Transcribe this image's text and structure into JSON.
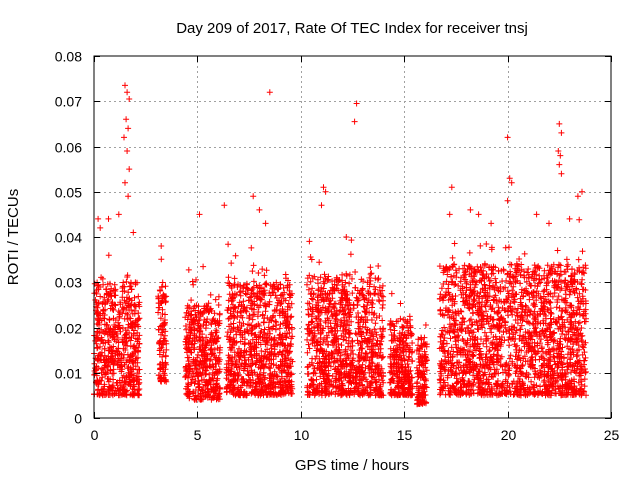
{
  "chart_data": {
    "type": "scatter",
    "title": "Day 209 of 2017, Rate Of TEC Index for receiver tnsj",
    "xlabel": "GPS time / hours",
    "ylabel": "ROTI / TECUs",
    "xlim": [
      0,
      25
    ],
    "ylim": [
      0,
      0.08
    ],
    "xticks": [
      0,
      5,
      10,
      15,
      20,
      25
    ],
    "yticks": [
      0,
      0.01,
      0.02,
      0.03,
      0.04,
      0.05,
      0.06,
      0.07,
      0.08
    ],
    "xtick_labels": [
      "0",
      "5",
      "10",
      "15",
      "20",
      "25"
    ],
    "ytick_labels": [
      "0",
      "0.01",
      "0.02",
      "0.03",
      "0.04",
      "0.05",
      "0.06",
      "0.07",
      "0.08"
    ],
    "grid": true,
    "marker": "+",
    "marker_color": "#ff0000",
    "segments": [
      {
        "x": [
          0.0,
          2.2
        ],
        "y_base": [
          0.005,
          0.03
        ]
      },
      {
        "x": [
          3.1,
          3.5
        ],
        "y_base": [
          0.008,
          0.03
        ]
      },
      {
        "x": [
          4.4,
          6.1
        ],
        "y_base": [
          0.004,
          0.025
        ]
      },
      {
        "x": [
          6.4,
          9.6
        ],
        "y_base": [
          0.005,
          0.03
        ]
      },
      {
        "x": [
          10.3,
          14.0
        ],
        "y_base": [
          0.005,
          0.032
        ]
      },
      {
        "x": [
          14.3,
          15.4
        ],
        "y_base": [
          0.005,
          0.022
        ]
      },
      {
        "x": [
          15.6,
          16.1
        ],
        "y_base": [
          0.003,
          0.018
        ]
      },
      {
        "x": [
          16.7,
          23.8
        ],
        "y_base": [
          0.005,
          0.034
        ]
      }
    ],
    "points": [
      [
        1.5,
        0.0735
      ],
      [
        1.6,
        0.072
      ],
      [
        1.7,
        0.0705
      ],
      [
        1.55,
        0.066
      ],
      [
        1.65,
        0.064
      ],
      [
        1.45,
        0.062
      ],
      [
        1.6,
        0.059
      ],
      [
        1.7,
        0.055
      ],
      [
        1.5,
        0.052
      ],
      [
        1.65,
        0.049
      ],
      [
        0.2,
        0.044
      ],
      [
        0.3,
        0.042
      ],
      [
        1.2,
        0.045
      ],
      [
        1.9,
        0.041
      ],
      [
        0.7,
        0.044
      ],
      [
        8.5,
        0.072
      ],
      [
        12.7,
        0.0695
      ],
      [
        12.6,
        0.0655
      ],
      [
        7.7,
        0.049
      ],
      [
        8.0,
        0.046
      ],
      [
        8.3,
        0.043
      ],
      [
        6.3,
        0.047
      ],
      [
        5.1,
        0.045
      ],
      [
        11.0,
        0.047
      ],
      [
        11.1,
        0.051
      ],
      [
        11.2,
        0.05
      ],
      [
        12.2,
        0.04
      ],
      [
        17.3,
        0.051
      ],
      [
        17.2,
        0.045
      ],
      [
        18.2,
        0.046
      ],
      [
        18.6,
        0.045
      ],
      [
        20.0,
        0.062
      ],
      [
        20.1,
        0.053
      ],
      [
        20.2,
        0.052
      ],
      [
        20.0,
        0.048
      ],
      [
        22.5,
        0.065
      ],
      [
        22.6,
        0.063
      ],
      [
        22.45,
        0.059
      ],
      [
        22.55,
        0.058
      ],
      [
        22.5,
        0.056
      ],
      [
        22.6,
        0.054
      ],
      [
        23.4,
        0.049
      ],
      [
        23.6,
        0.05
      ],
      [
        21.4,
        0.045
      ],
      [
        22.0,
        0.043
      ],
      [
        23.0,
        0.044
      ],
      [
        19.2,
        0.043
      ]
    ]
  }
}
